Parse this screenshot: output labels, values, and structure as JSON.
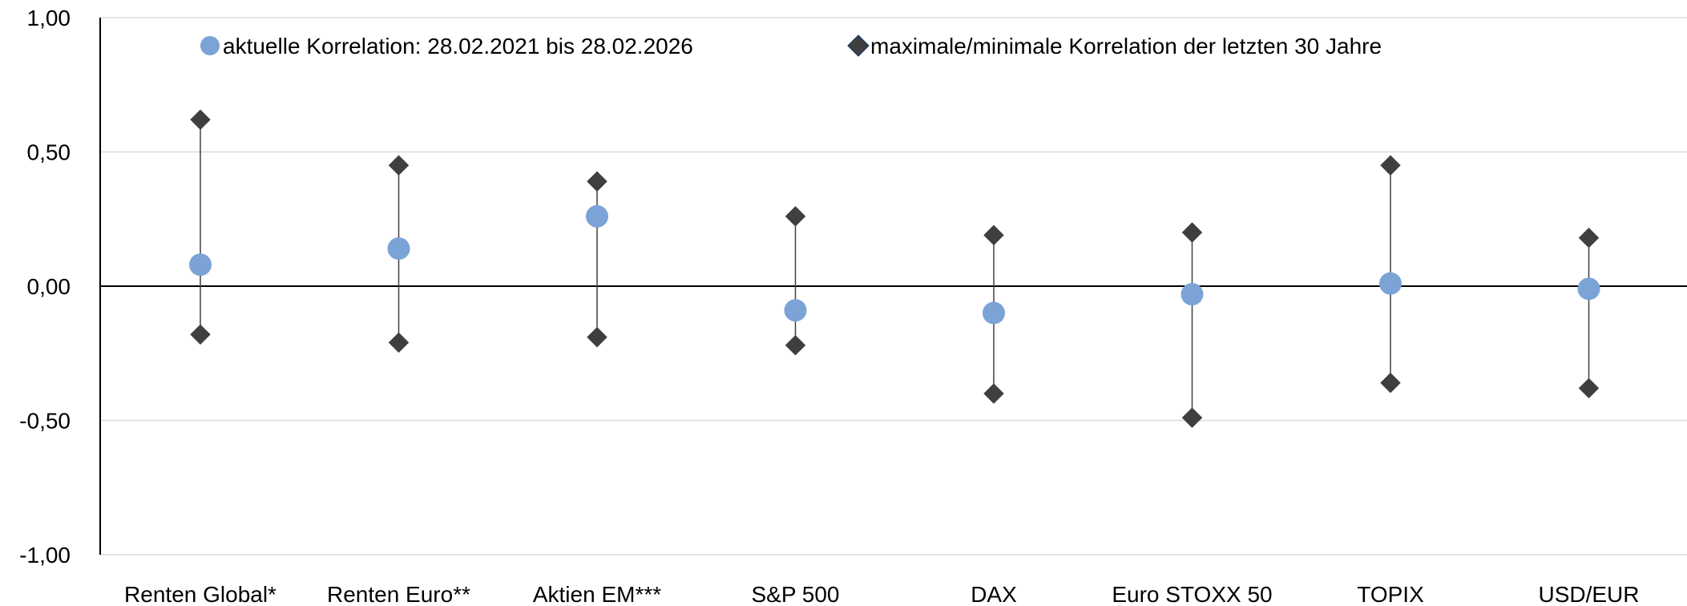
{
  "chart_data": {
    "type": "scatter",
    "ylim": [
      -1.0,
      1.0
    ],
    "yticks": [
      "1,00",
      "0,50",
      "0,00",
      "-0,50",
      "-1,00"
    ],
    "ytick_values": [
      1.0,
      0.5,
      0.0,
      -0.5,
      -1.0
    ],
    "grid": true,
    "legend_position": "top",
    "categories": [
      "Renten Global*",
      "Renten Euro**",
      "Aktien EM***",
      "S&P 500",
      "DAX",
      "Euro STOXX 50",
      "TOPIX",
      "USD/EUR"
    ],
    "series": [
      {
        "name": "aktuelle Korrelation: 28.02.2021 bis 28.02.2026",
        "marker": "circle",
        "color": "#7ba3d6",
        "values": [
          0.08,
          0.14,
          0.26,
          -0.09,
          -0.1,
          -0.03,
          0.01,
          -0.01
        ]
      },
      {
        "name": "maximale/minimale Korrelation der letzten 30 Jahre",
        "marker": "diamond",
        "color": "#3f3f3f",
        "max": [
          0.62,
          0.45,
          0.39,
          0.26,
          0.19,
          0.2,
          0.45,
          0.18
        ],
        "min": [
          -0.18,
          -0.21,
          -0.19,
          -0.22,
          -0.4,
          -0.49,
          -0.36,
          -0.38
        ]
      }
    ]
  }
}
